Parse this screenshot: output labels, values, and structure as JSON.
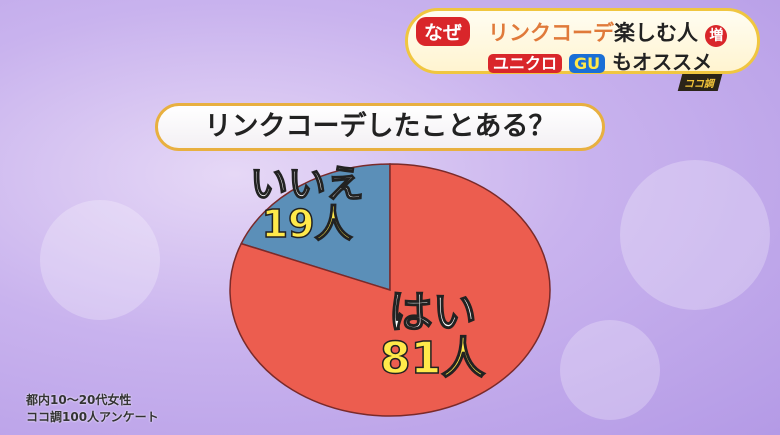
{
  "headline": {
    "tag": "なぜ",
    "line1_accent": "リンクコーデ",
    "line1_rest": "楽しむ人",
    "line1_badge": "増",
    "line2_brand1": "ユニクロ",
    "line2_brand2": "GU",
    "line2_rest": "もオススメ",
    "corner_logo": "ココ調"
  },
  "chart_data": {
    "type": "pie",
    "title": "リンクコーデしたことある？",
    "slices": [
      {
        "label": "はい",
        "value": 81,
        "value_text": "81人",
        "color": "#ec5d4f"
      },
      {
        "label": "いいえ",
        "value": 19,
        "value_text": "19人",
        "color": "#5b8fb8"
      }
    ],
    "start": "top",
    "direction": "counterclockwise-from-top for いいえ"
  },
  "footnote": {
    "line1": "都内10～20代女性",
    "line2": "ココ調100人アンケート"
  }
}
